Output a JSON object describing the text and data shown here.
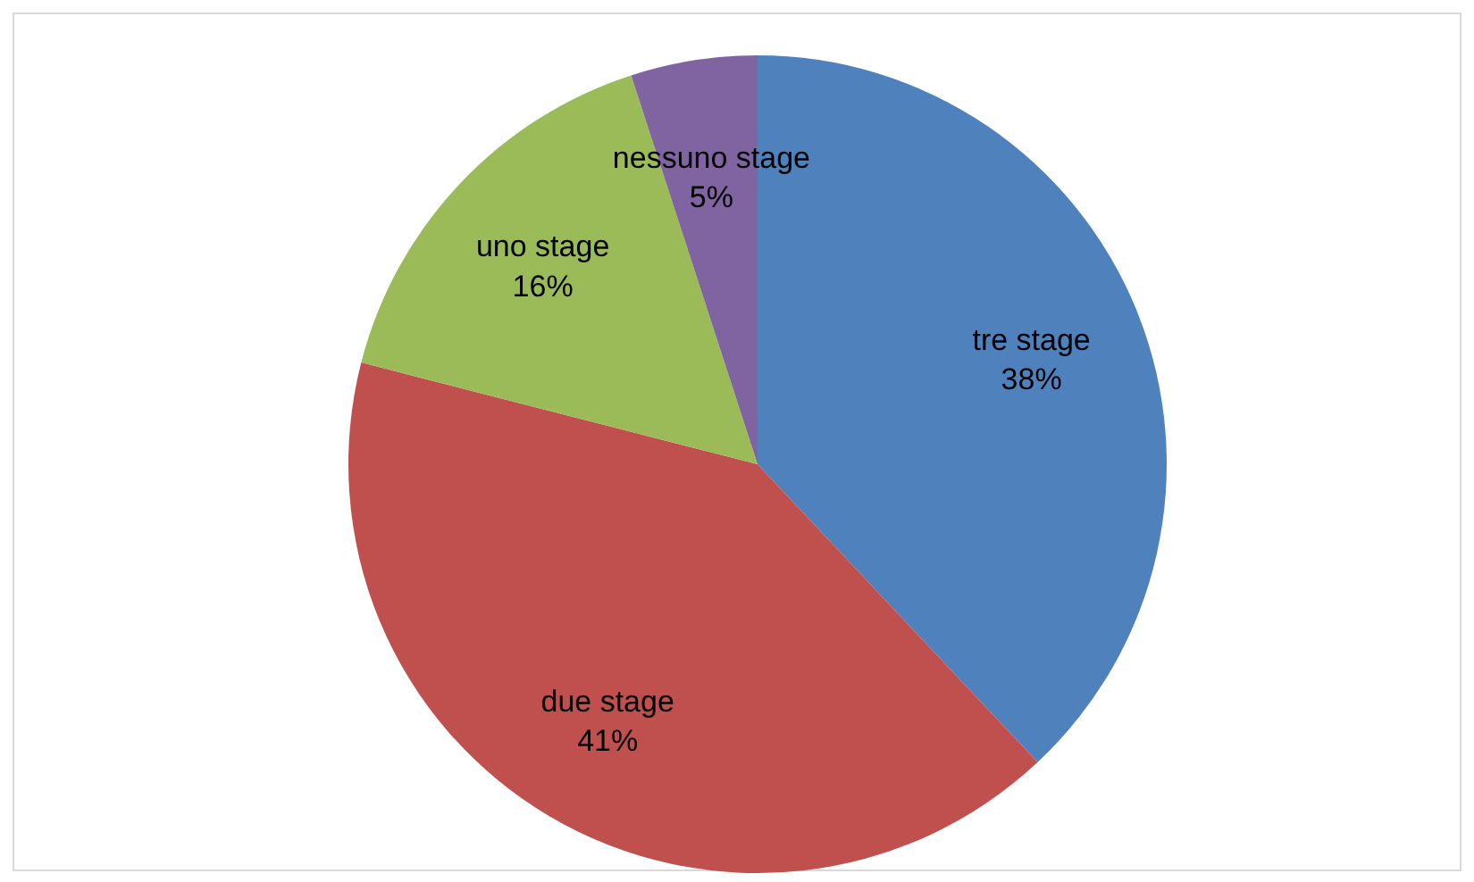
{
  "chart_data": {
    "type": "pie",
    "categories": [
      "tre stage",
      "due stage",
      "uno stage",
      "nessuno stage"
    ],
    "values": [
      38,
      41,
      16,
      5
    ],
    "colors": [
      "#4f81bd",
      "#c0504d",
      "#9bbb59",
      "#8064a2"
    ],
    "value_labels": [
      "38%",
      "41%",
      "16%",
      "5%"
    ],
    "legend": false
  }
}
